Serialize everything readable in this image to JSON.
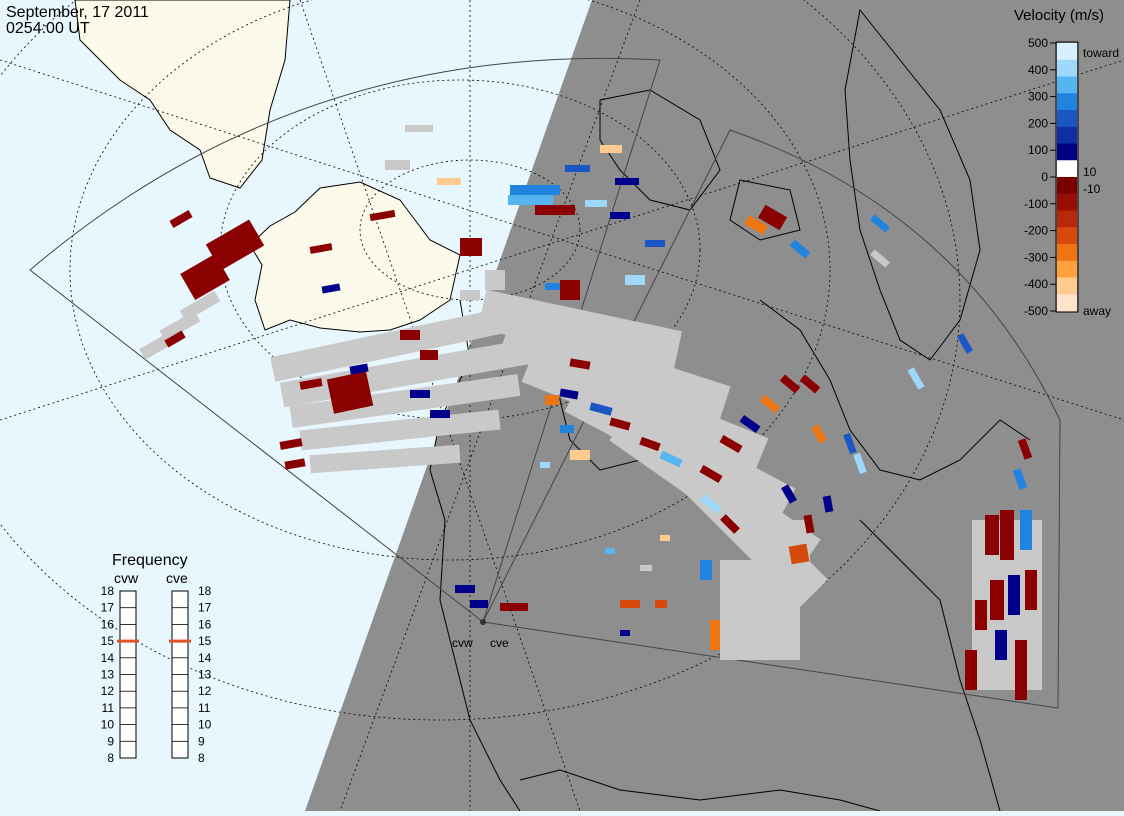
{
  "header": {
    "date": "September, 17 2011",
    "time": "0254:00 UT"
  },
  "colors": {
    "day_side": "#e8f6fd",
    "night_side": "#8e8e8e",
    "land_day": "#fbf9ea",
    "ground_scatter": "#c9c9c9",
    "away_dark": "#8b0000",
    "toward_dark": "#00008b"
  },
  "velocity_legend": {
    "title": "Velocity (m/s)",
    "toward_label": "toward",
    "away_label": "away",
    "ticks": [
      "500",
      "400",
      "300",
      "200",
      "100",
      "0",
      "-100",
      "-200",
      "-300",
      "-400",
      "-500"
    ],
    "threshold_pos": "10",
    "threshold_neg": "-10",
    "colors": [
      "#d7f0ff",
      "#9ed9fb",
      "#56b4f0",
      "#1f83df",
      "#1a56c4",
      "#0d2fa3",
      "#000080",
      "#ffffff",
      "#7a0000",
      "#980e05",
      "#b8280a",
      "#d64a0c",
      "#ee7512",
      "#ffa13c",
      "#ffcb8f",
      "#ffe3c8"
    ]
  },
  "frequency_legend": {
    "title": "Frequency",
    "radars": [
      "cvw",
      "cve"
    ],
    "levels": [
      "18",
      "17",
      "16",
      "15",
      "14",
      "13",
      "12",
      "11",
      "10",
      "9",
      "8"
    ],
    "selected_mhz": [
      15,
      15
    ],
    "marker_color": "#e0522a"
  },
  "map": {
    "radar_labels": [
      "cvw",
      "cve"
    ]
  }
}
